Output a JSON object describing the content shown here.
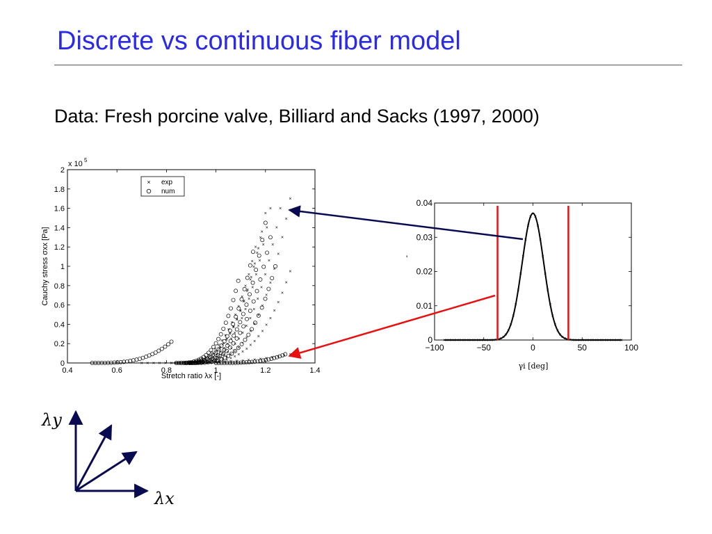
{
  "slide": {
    "title": "Discrete vs continuous fiber model",
    "subtitle": "Data: Fresh porcine valve, Billiard and Sacks (1997, 2000)"
  },
  "colors": {
    "title": "#2a2ae8",
    "arrow_dark": "#0a0a50",
    "arrow_red": "#e81010",
    "limit_lines": "#e81010"
  },
  "chart_data": [
    {
      "type": "scatter",
      "title": "",
      "xlabel": "Stretch ratio λx [-]",
      "ylabel": "Cauchy stress σxx [Pa]",
      "y_exponent_label": "x 10",
      "y_exponent_sup": "5",
      "xlim": [
        0.4,
        1.4
      ],
      "ylim": [
        0,
        2
      ],
      "xticks": [
        "0.4",
        "0.6",
        "0.8",
        "1",
        "1.2",
        "1.4"
      ],
      "yticks": [
        "0",
        "0.2",
        "0.4",
        "0.6",
        "0.8",
        "1",
        "1.2",
        "1.4",
        "1.6",
        "1.8",
        "2"
      ],
      "legend": {
        "placement": "top-center",
        "entries": [
          "exp",
          "num"
        ]
      },
      "series": [
        {
          "name": "exp",
          "marker": "x",
          "curves": [
            {
              "x0": 0.9,
              "x1": 1.3,
              "ymax": 1.7
            },
            {
              "x0": 0.88,
              "x1": 1.26,
              "ymax": 1.6
            },
            {
              "x0": 0.86,
              "x1": 1.22,
              "ymax": 1.6
            },
            {
              "x0": 0.84,
              "x1": 1.2,
              "ymax": 1.55
            },
            {
              "x0": 0.84,
              "x1": 1.18,
              "ymax": 1.3
            },
            {
              "x0": 0.82,
              "x1": 1.16,
              "ymax": 1.2
            },
            {
              "x0": 0.9,
              "x1": 1.3,
              "ymax": 0.95
            },
            {
              "x0": 0.7,
              "x1": 1.3,
              "ymax": 0.09
            }
          ]
        },
        {
          "name": "num",
          "marker": "o",
          "curves": [
            {
              "x0": 0.5,
              "x1": 0.82,
              "ymax": 0.22
            },
            {
              "x0": 0.84,
              "x1": 1.09,
              "ymax": 0.85
            },
            {
              "x0": 0.86,
              "x1": 1.15,
              "ymax": 1.15
            },
            {
              "x0": 0.88,
              "x1": 1.2,
              "ymax": 1.45
            },
            {
              "x0": 0.88,
              "x1": 1.22,
              "ymax": 1.3
            },
            {
              "x0": 0.9,
              "x1": 1.24,
              "ymax": 1.0
            },
            {
              "x0": 1.0,
              "x1": 1.28,
              "ymax": 0.09
            }
          ]
        }
      ]
    },
    {
      "type": "line",
      "title": "",
      "xlabel": "γi [deg]",
      "ylabel": "",
      "xlim": [
        -100,
        100
      ],
      "ylim": [
        0,
        0.04
      ],
      "xticks": [
        "−100",
        "−50",
        "0",
        "50",
        "100"
      ],
      "yticks": [
        "0",
        "0.01",
        "0.02",
        "0.03",
        "0.04"
      ],
      "distribution": {
        "mean": 0,
        "sd": 11,
        "peak": 0.037,
        "x_range": [
          -90,
          90
        ]
      },
      "limit_lines_x": [
        -36,
        36
      ]
    }
  ],
  "axes_diagram": {
    "x_label": "λx",
    "y_label": "λy"
  }
}
